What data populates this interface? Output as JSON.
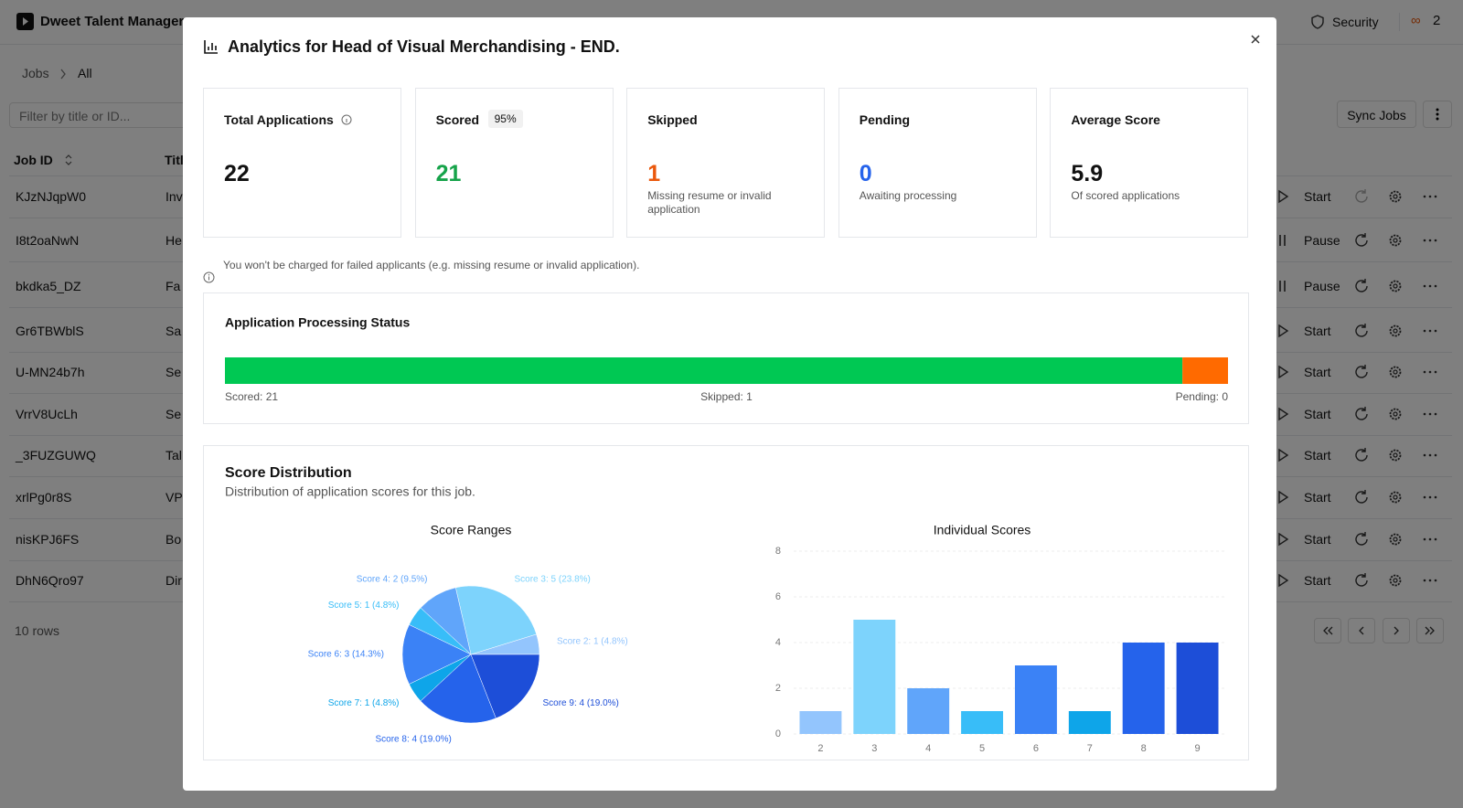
{
  "app": {
    "brand": "Dweet Talent Manager",
    "security": "Security",
    "usage_icon": "∞",
    "usage_count": "2",
    "breadcrumb": [
      "Jobs",
      "All"
    ],
    "filter_placeholder": "Filter by title or ID...",
    "sync_button": "Sync Jobs",
    "table": {
      "columns": [
        "Job ID",
        "Titl"
      ],
      "rows": [
        [
          "KJzNJqpW0",
          "Inv",
          "Start"
        ],
        [
          "I8t2oaNwN",
          "He",
          "Pause"
        ],
        [
          "bkdka5_DZ",
          "Fa",
          "Pause"
        ],
        [
          "Gr6TBWblS",
          "Sa",
          "Start"
        ],
        [
          "U-MN24b7h",
          "Se",
          "Start"
        ],
        [
          "VrrV8UcLh",
          "Se",
          "Start"
        ],
        [
          "_3FUZGUWQ",
          "Tal",
          "Start"
        ],
        [
          "xrlPg0r8S",
          "VP",
          "Start"
        ],
        [
          "nisKPJ6FS",
          "Bo",
          "Start"
        ],
        [
          "DhN6Qro97",
          "Dir",
          "Start"
        ]
      ]
    },
    "row_count": "10 rows"
  },
  "modal": {
    "title": "Analytics for Head of Visual Merchandising - END.",
    "cards": [
      {
        "label": "Total Applications",
        "value": 22
      },
      {
        "label": "Scored",
        "badge": "95%",
        "value": 21
      },
      {
        "label": "Skipped",
        "value": 1,
        "note": "Missing resume or invalid application"
      },
      {
        "label": "Pending",
        "value": 0,
        "note": "Awaiting processing"
      },
      {
        "label": "Average Score",
        "value": 5.9,
        "note": "Of scored applications"
      }
    ],
    "notice": "You won't be charged for failed applicants (e.g. missing resume or invalid application).",
    "score_distribution": {
      "title": "Score Distribution",
      "subtitle": "Distribution of application scores for this job."
    }
  },
  "chart_data": [
    {
      "type": "stacked-bar",
      "title": "Application Processing Status",
      "values": [
        21,
        1,
        0
      ],
      "value_labels": [
        "Scored: 21",
        "Skipped: 1",
        "Pending: 0"
      ],
      "colors": [
        "#00c853",
        "#ff6a00",
        "#9ca3af"
      ],
      "xlim": [
        0,
        22
      ]
    },
    {
      "type": "pie",
      "title": "Score Ranges",
      "values": [
        1,
        5,
        2,
        1,
        3,
        1,
        4,
        4
      ],
      "value_labels": [
        "Score 2: 1 (4.8%)",
        "Score 3: 5 (23.8%)",
        "Score 4: 2 (9.5%)",
        "Score 5: 1 (4.8%)",
        "Score 6: 3 (14.3%)",
        "Score 7: 1 (4.8%)",
        "Score 8: 4 (19.0%)",
        "Score 9: 4 (19.0%)"
      ],
      "colors": [
        "#93c5fd",
        "#7dd3fc",
        "#60a5fa",
        "#38bdf8",
        "#3b82f6",
        "#0ea5e9",
        "#2563eb",
        "#1d4ed8"
      ]
    },
    {
      "type": "bar",
      "title": "Individual Scores",
      "categories": [
        "2",
        "3",
        "4",
        "5",
        "6",
        "7",
        "8",
        "9"
      ],
      "values": [
        1,
        5,
        2,
        1,
        3,
        1,
        4,
        4
      ],
      "colors": [
        "#93c5fd",
        "#7dd3fc",
        "#60a5fa",
        "#38bdf8",
        "#3b82f6",
        "#0ea5e9",
        "#2563eb",
        "#1d4ed8"
      ],
      "ylim": [
        0,
        8
      ],
      "yticks": [
        0,
        2,
        4,
        6,
        8
      ],
      "grid": true
    }
  ]
}
